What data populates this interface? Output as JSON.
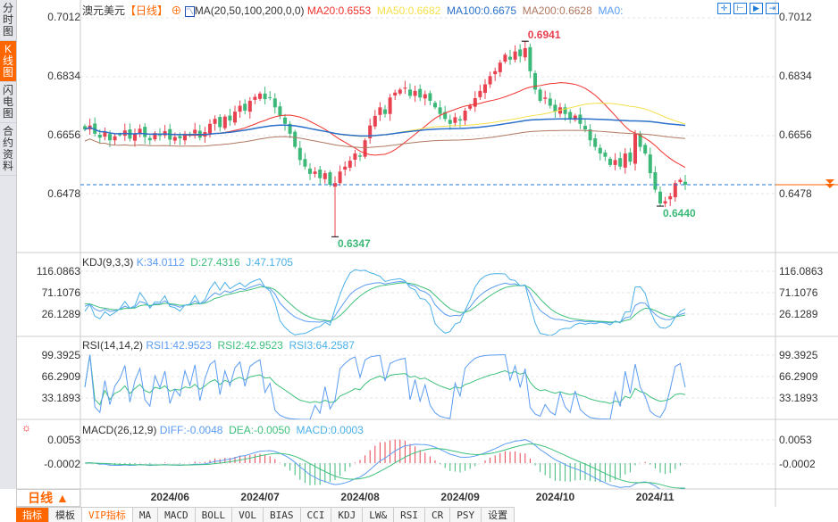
{
  "sidebar": [
    {
      "label": "分时图"
    },
    {
      "label": "K线图",
      "active": true
    },
    {
      "label": "闪电图"
    },
    {
      "label": "合约资料"
    }
  ],
  "header": {
    "symbol": "澳元美元",
    "period_tag": "【日线】",
    "ma_title": "MA(20,50,100,200,0,0)",
    "ma20": "MA20:0.6553",
    "ma50": "MA50:0.6682",
    "ma100": "MA100:0.6675",
    "ma200": "MA200:0.6628",
    "ma0": "MA0:"
  },
  "colors": {
    "up": "#e8414f",
    "down": "#3cb878",
    "ma20": "#f0322d",
    "ma50": "#f5e04a",
    "ma100": "#2a6fc9",
    "ma200": "#b07860",
    "k": "#5b9cf2",
    "d": "#3ec07c",
    "j": "#4ab0e8",
    "accent": "#ff6600"
  },
  "price_axis": {
    "ticks": [
      "0.7012",
      "0.6834",
      "0.6656",
      "0.6478"
    ],
    "values": [
      0.7012,
      0.6834,
      0.6656,
      0.6478
    ],
    "high_label": "0.6941",
    "low_label": "0.6347",
    "recent_low_label": "0.6440"
  },
  "kdj": {
    "title": "KDJ(9,3,3)",
    "k": "K:34.0112",
    "d": "D:27.4316",
    "j": "J:47.1705",
    "ticks": [
      "116.0863",
      "71.1076",
      "26.1289"
    ]
  },
  "rsi": {
    "title": "RSI(14,14,2)",
    "rsi1": "RSI1:42.9523",
    "rsi2": "RSI2:42.9523",
    "rsi3": "RSI3:64.2587",
    "ticks": [
      "99.3925",
      "66.2909",
      "33.1893"
    ]
  },
  "macd": {
    "title": "MACD(26,12,9)",
    "diff": "DIFF:-0.0048",
    "dea": "DEA:-0.0050",
    "macd": "MACD:0.0003",
    "ticks": [
      "0.0053",
      "-0.0002"
    ]
  },
  "footer": {
    "period": "日线 ▲",
    "dates": [
      "2024/06",
      "2024/07",
      "2024/08",
      "2024/09",
      "2024/10",
      "2024/11"
    ],
    "tabs": [
      "指标",
      "模板",
      "VIP指标",
      "MA",
      "MACD",
      "BOLL",
      "VOL",
      "BIAS",
      "CCI",
      "KDJ",
      "LW&",
      "RSI",
      "CR",
      "PSY",
      "设置"
    ]
  },
  "chart_data": {
    "type": "candlestick",
    "title": "澳元美元 日线",
    "xlabel": "",
    "ylabel": "",
    "ylim": [
      0.634,
      0.703
    ],
    "closes": [
      0.6673,
      0.6685,
      0.666,
      0.6648,
      0.6665,
      0.664,
      0.6652,
      0.6657,
      0.667,
      0.6645,
      0.666,
      0.6675,
      0.665,
      0.664,
      0.6662,
      0.6655,
      0.6668,
      0.6642,
      0.665,
      0.6646,
      0.666,
      0.6655,
      0.6672,
      0.6648,
      0.6665,
      0.669,
      0.6705,
      0.668,
      0.6712,
      0.67,
      0.6727,
      0.6745,
      0.673,
      0.676,
      0.6772,
      0.6782,
      0.6765,
      0.677,
      0.674,
      0.6715,
      0.669,
      0.666,
      0.662,
      0.658,
      0.656,
      0.6538,
      0.6545,
      0.6525,
      0.654,
      0.6505,
      0.651,
      0.6545,
      0.656,
      0.6578,
      0.66,
      0.659,
      0.664,
      0.6685,
      0.6714,
      0.674,
      0.672,
      0.677,
      0.6785,
      0.6794,
      0.68,
      0.6775,
      0.679,
      0.677,
      0.678,
      0.676,
      0.674,
      0.672,
      0.6705,
      0.669,
      0.671,
      0.67,
      0.673,
      0.6745,
      0.6768,
      0.679,
      0.681,
      0.6835,
      0.685,
      0.6876,
      0.69,
      0.6885,
      0.691,
      0.6895,
      0.692,
      0.685,
      0.6794,
      0.676,
      0.677,
      0.6745,
      0.6727,
      0.674,
      0.672,
      0.6705,
      0.6715,
      0.669,
      0.6673,
      0.664,
      0.662,
      0.66,
      0.659,
      0.6565,
      0.658,
      0.656,
      0.66,
      0.6575,
      0.666,
      0.662,
      0.66,
      0.654,
      0.649,
      0.6448,
      0.6455,
      0.647,
      0.651,
      0.652,
      0.6505
    ],
    "extremes": [
      {
        "index": 50,
        "low": 0.6347
      },
      {
        "index": 88,
        "high": 0.6941
      },
      {
        "index": 115,
        "low": 0.644
      }
    ],
    "date_index": {
      "2024/06": 11,
      "2024/07": 29,
      "2024/08": 49,
      "2024/09": 69,
      "2024/10": 88,
      "2024/11": 108
    }
  }
}
